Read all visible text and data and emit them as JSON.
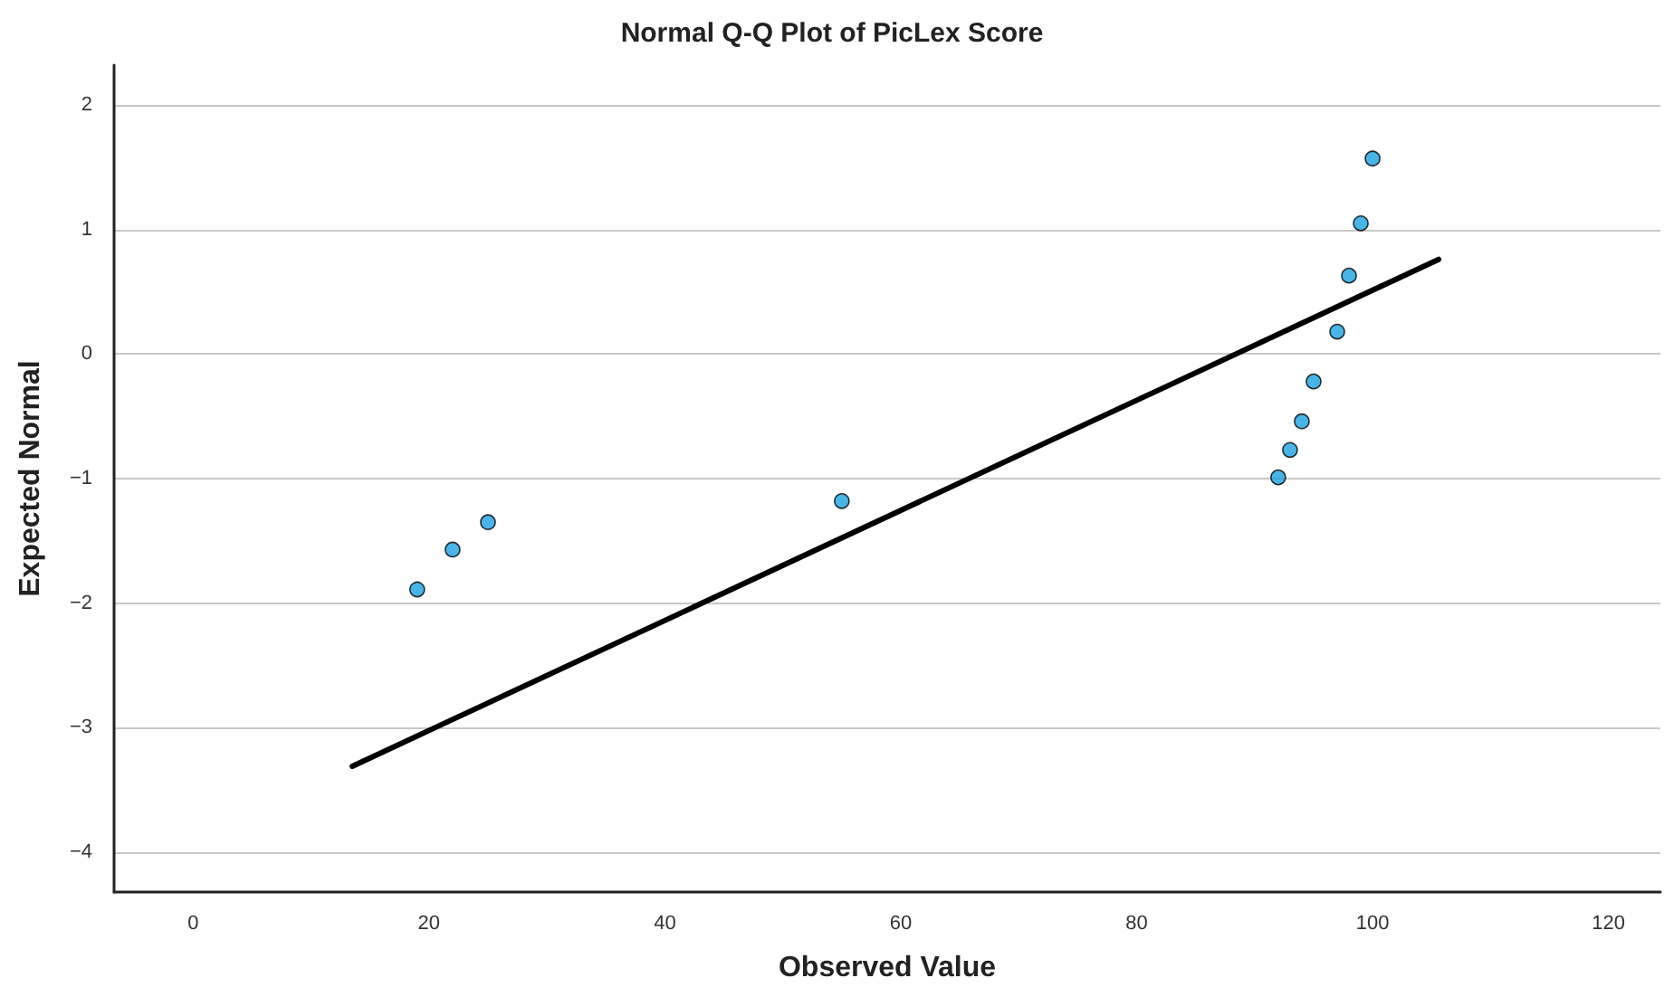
{
  "chart_data": {
    "type": "scatter",
    "title": "Normal Q-Q Plot of PicLex Score",
    "xlabel": "Observed Value",
    "ylabel": "Expected Normal",
    "grid": "y",
    "marker": "circle",
    "xlim": [
      -6.7,
      124.4
    ],
    "xticks": [
      0,
      20,
      40,
      60,
      80,
      100,
      120
    ],
    "ylim": [
      -4.32,
      2.32
    ],
    "yticks": [
      -4,
      -3,
      -2,
      -1,
      0,
      1,
      2
    ],
    "series": [
      {
        "color": "#1ba1e2",
        "x": [
          19,
          22,
          25,
          55,
          92,
          93,
          94,
          95,
          97,
          98,
          99,
          100
        ],
        "values": [
          -1.89,
          -1.57,
          -1.35,
          -1.18,
          -0.99,
          -0.77,
          -0.54,
          -0.22,
          0.18,
          0.63,
          1.05,
          1.57
        ]
      },
      {
        "type": "line",
        "color": "#000000",
        "marker": "none",
        "line_style": "solid",
        "x": [
          13.5,
          105.6
        ],
        "values": [
          -3.31,
          0.76
        ]
      }
    ]
  }
}
